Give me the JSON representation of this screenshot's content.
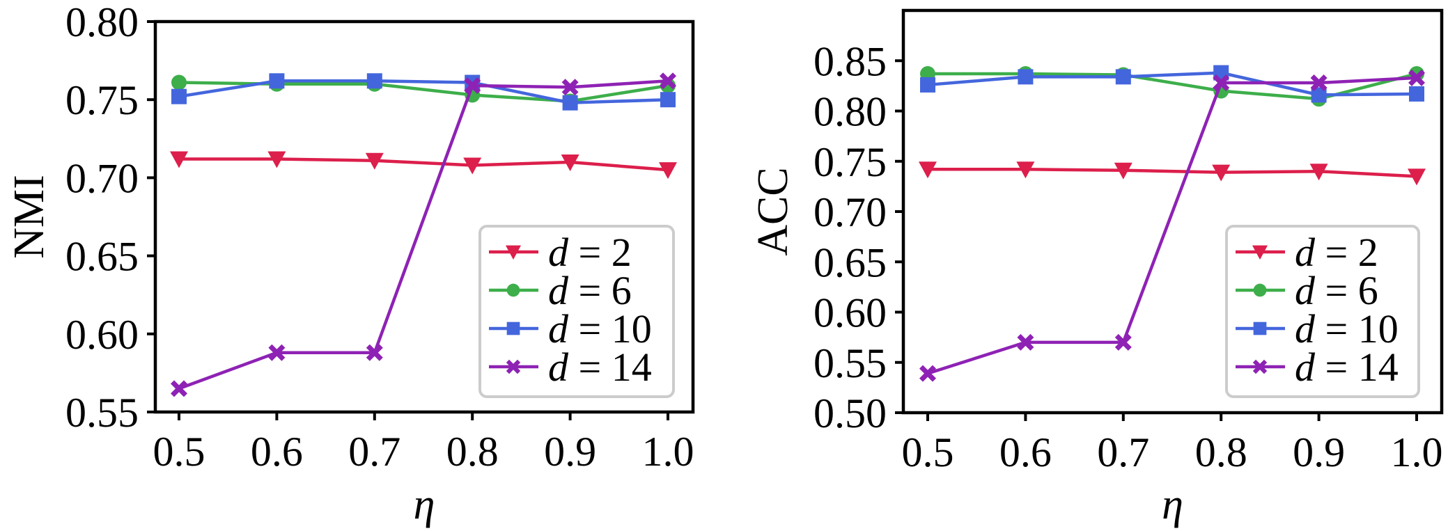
{
  "chart_data": [
    {
      "type": "line",
      "title": "",
      "xlabel": "η",
      "ylabel": "NMI",
      "x": [
        0.5,
        0.6,
        0.7,
        0.8,
        0.9,
        1.0
      ],
      "x_tick_labels": [
        "0.5",
        "0.6",
        "0.7",
        "0.8",
        "0.9",
        "1.0"
      ],
      "xlim": [
        0.5,
        1.0
      ],
      "ylim": [
        0.55,
        0.8
      ],
      "y_ticks": [
        0.55,
        0.6,
        0.65,
        0.7,
        0.75,
        0.8
      ],
      "y_tick_labels": [
        "0.55",
        "0.60",
        "0.65",
        "0.70",
        "0.75",
        "0.80"
      ],
      "grid": false,
      "legend_position": "lower-right",
      "series": [
        {
          "name": "d = 2",
          "var": "d",
          "rest": " = 2",
          "color": "#DC1F4B",
          "marker": "triangle-down",
          "values": [
            0.712,
            0.712,
            0.711,
            0.708,
            0.71,
            0.705
          ]
        },
        {
          "name": "d = 6",
          "var": "d",
          "rest": " = 6",
          "color": "#3DAE4A",
          "marker": "circle",
          "values": [
            0.761,
            0.76,
            0.76,
            0.753,
            0.749,
            0.759
          ]
        },
        {
          "name": "d = 10",
          "var": "d",
          "rest": " = 10",
          "color": "#4466DD",
          "marker": "square",
          "values": [
            0.752,
            0.762,
            0.762,
            0.761,
            0.748,
            0.75
          ]
        },
        {
          "name": "d = 14",
          "var": "d",
          "rest": " = 14",
          "color": "#8E22B4",
          "marker": "x-filled",
          "values": [
            0.565,
            0.588,
            0.588,
            0.759,
            0.758,
            0.762
          ]
        }
      ]
    },
    {
      "type": "line",
      "title": "",
      "xlabel": "η",
      "ylabel": "ACC",
      "x": [
        0.5,
        0.6,
        0.7,
        0.8,
        0.9,
        1.0
      ],
      "x_tick_labels": [
        "0.5",
        "0.6",
        "0.7",
        "0.8",
        "0.9",
        "1.0"
      ],
      "xlim": [
        0.5,
        1.0
      ],
      "ylim": [
        0.5,
        0.9
      ],
      "y_ticks": [
        0.5,
        0.55,
        0.6,
        0.65,
        0.7,
        0.75,
        0.8,
        0.85
      ],
      "y_tick_labels": [
        "0.50",
        "0.55",
        "0.60",
        "0.65",
        "0.70",
        "0.75",
        "0.80",
        "0.85"
      ],
      "grid": false,
      "legend_position": "lower-right",
      "series": [
        {
          "name": "d = 2",
          "var": "d",
          "rest": " = 2",
          "color": "#DC1F4B",
          "marker": "triangle-down",
          "values": [
            0.742,
            0.742,
            0.741,
            0.739,
            0.74,
            0.735
          ]
        },
        {
          "name": "d = 6",
          "var": "d",
          "rest": " = 6",
          "color": "#3DAE4A",
          "marker": "circle",
          "values": [
            0.837,
            0.837,
            0.836,
            0.82,
            0.812,
            0.837
          ]
        },
        {
          "name": "d = 10",
          "var": "d",
          "rest": " = 10",
          "color": "#4466DD",
          "marker": "square",
          "values": [
            0.826,
            0.834,
            0.834,
            0.838,
            0.816,
            0.817
          ]
        },
        {
          "name": "d = 14",
          "var": "d",
          "rest": " = 14",
          "color": "#8E22B4",
          "marker": "x-filled",
          "values": [
            0.539,
            0.57,
            0.57,
            0.828,
            0.828,
            0.833
          ]
        }
      ]
    }
  ]
}
